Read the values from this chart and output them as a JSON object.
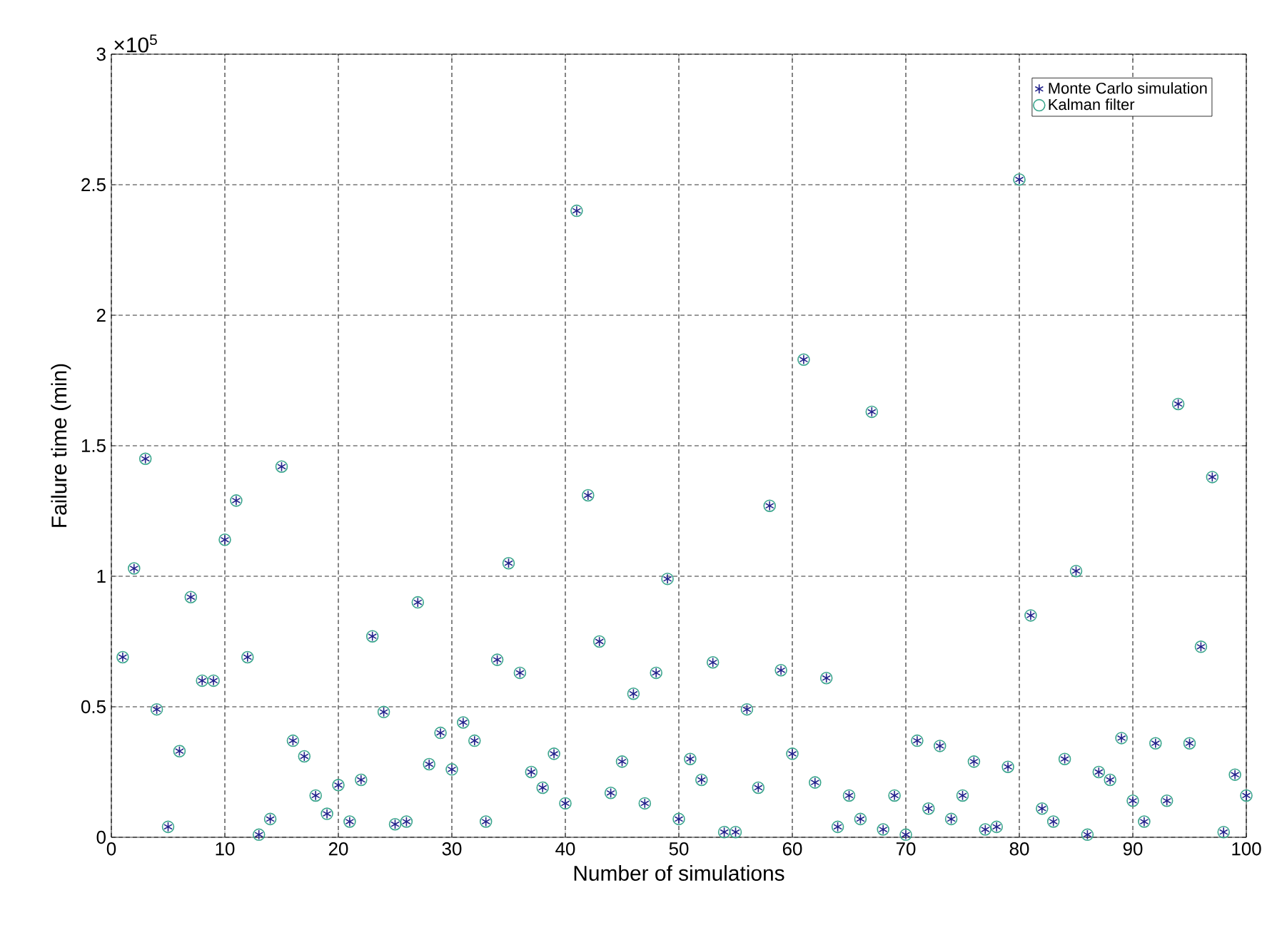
{
  "chart_data": {
    "type": "scatter",
    "xlabel": "Number of simulations",
    "ylabel": "Failure time (min)",
    "annotations": [
      "×10$^{5}$"
    ],
    "x": [
      1,
      2,
      3,
      4,
      5,
      6,
      7,
      8,
      9,
      10,
      11,
      12,
      13,
      14,
      15,
      16,
      17,
      18,
      19,
      20,
      21,
      22,
      23,
      24,
      25,
      26,
      27,
      28,
      29,
      30,
      31,
      32,
      33,
      34,
      35,
      36,
      37,
      38,
      39,
      40,
      41,
      42,
      43,
      44,
      45,
      46,
      47,
      48,
      49,
      50,
      51,
      52,
      53,
      54,
      55,
      56,
      57,
      58,
      59,
      60,
      61,
      62,
      63,
      64,
      65,
      66,
      67,
      68,
      69,
      70,
      71,
      72,
      73,
      74,
      75,
      76,
      77,
      78,
      79,
      80,
      81,
      82,
      83,
      84,
      85,
      86,
      87,
      88,
      89,
      90,
      91,
      92,
      93,
      94,
      95,
      96,
      97,
      98,
      99,
      100
    ],
    "series": [
      {
        "name": "Monte Carlo simulation",
        "color": "#23238c",
        "marker": "cross",
        "values": [
          0.69,
          1.03,
          1.45,
          0.49,
          0.04,
          0.33,
          0.92,
          0.6,
          0.6,
          1.14,
          1.29,
          0.69,
          0.01,
          0.07,
          1.42,
          0.37,
          0.31,
          0.16,
          0.09,
          0.2,
          0.06,
          0.22,
          0.77,
          0.48,
          0.05,
          0.06,
          0.9,
          0.28,
          0.4,
          0.26,
          0.44,
          0.37,
          0.06,
          0.68,
          1.05,
          0.63,
          0.25,
          0.19,
          0.32,
          0.13,
          2.4,
          1.31,
          0.75,
          0.17,
          0.29,
          0.55,
          0.13,
          0.63,
          0.99,
          0.07,
          0.3,
          0.22,
          0.67,
          0.02,
          0.02,
          0.49,
          0.19,
          1.27,
          0.64,
          0.32,
          1.83,
          0.21,
          0.61,
          0.04,
          0.16,
          0.07,
          1.63,
          0.03,
          0.16,
          0.01,
          0.37,
          0.11,
          0.35,
          0.07,
          0.16,
          0.29,
          0.03,
          0.04,
          0.27,
          2.52,
          0.85,
          0.11,
          0.06,
          0.3,
          1.02,
          0.01,
          0.25,
          0.22,
          0.38,
          0.14,
          0.06,
          0.36,
          0.14,
          1.66,
          0.36,
          0.73,
          1.38,
          0.02,
          0.24,
          0.16
        ]
      },
      {
        "name": "Kalman filter",
        "color": "#3aa58c",
        "marker": "circle",
        "values": [
          0.69,
          1.03,
          1.45,
          0.49,
          0.04,
          0.33,
          0.92,
          0.6,
          0.6,
          1.14,
          1.29,
          0.69,
          0.01,
          0.07,
          1.42,
          0.37,
          0.31,
          0.16,
          0.09,
          0.2,
          0.06,
          0.22,
          0.77,
          0.48,
          0.05,
          0.06,
          0.9,
          0.28,
          0.4,
          0.26,
          0.44,
          0.37,
          0.06,
          0.68,
          1.05,
          0.63,
          0.25,
          0.19,
          0.32,
          0.13,
          2.4,
          1.31,
          0.75,
          0.17,
          0.29,
          0.55,
          0.13,
          0.63,
          0.99,
          0.07,
          0.3,
          0.22,
          0.67,
          0.02,
          0.02,
          0.49,
          0.19,
          1.27,
          0.64,
          0.32,
          1.83,
          0.21,
          0.61,
          0.04,
          0.16,
          0.07,
          1.63,
          0.03,
          0.16,
          0.01,
          0.37,
          0.11,
          0.35,
          0.07,
          0.16,
          0.29,
          0.03,
          0.04,
          0.27,
          2.52,
          0.85,
          0.11,
          0.06,
          0.3,
          1.02,
          0.01,
          0.25,
          0.22,
          0.38,
          0.14,
          0.06,
          0.36,
          0.14,
          1.66,
          0.36,
          0.73,
          1.38,
          0.02,
          0.24,
          0.16
        ]
      }
    ],
    "xlim": [
      0,
      100
    ],
    "xticks": [
      0,
      10,
      20,
      30,
      40,
      50,
      60,
      70,
      80,
      90,
      100
    ],
    "ylim": [
      0,
      3
    ],
    "yticks": [
      0,
      0.5,
      1,
      1.5,
      2,
      2.5,
      3
    ],
    "grid": true,
    "legend": "top right",
    "line_style": "dotted"
  }
}
